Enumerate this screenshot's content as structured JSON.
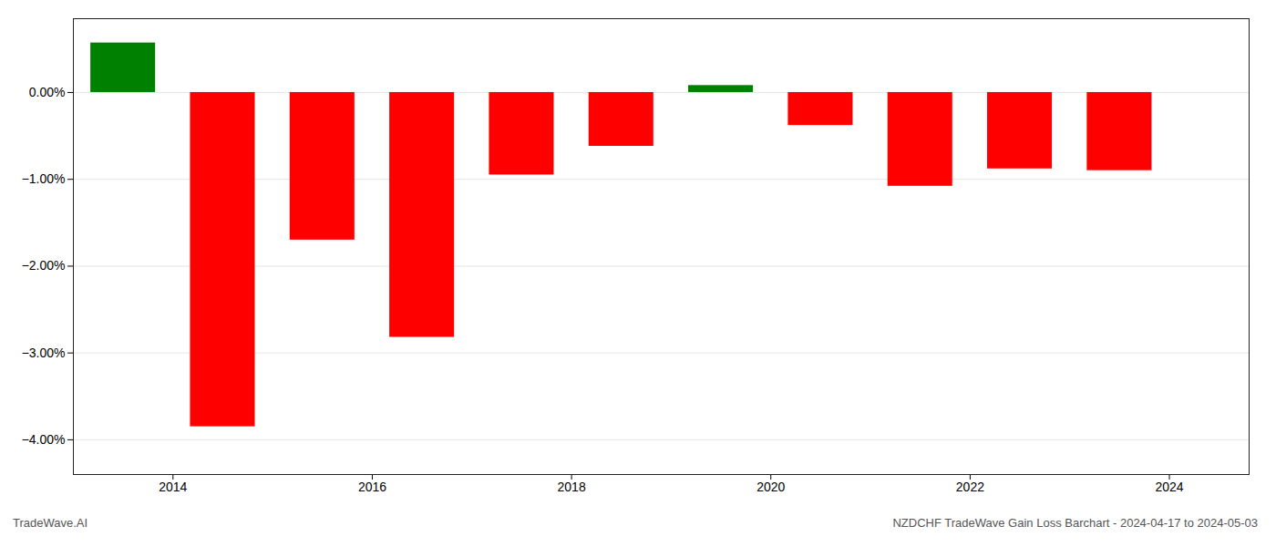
{
  "chart_data": {
    "type": "bar",
    "title": "NZDCHF TradeWave Gain Loss Barchart - 2024-04-17 to 2024-05-03",
    "annotations": [
      "TradeWave.AI"
    ],
    "x": [
      2013.5,
      2014.5,
      2015.5,
      2016.5,
      2017.5,
      2018.5,
      2019.5,
      2020.5,
      2021.5,
      2022.5,
      2023.5
    ],
    "values": [
      0.57,
      -3.85,
      -1.7,
      -2.82,
      -0.95,
      -0.62,
      0.08,
      -0.38,
      -1.08,
      -0.88,
      -0.9
    ],
    "colors": [
      "#008000",
      "#ff0000",
      "#ff0000",
      "#ff0000",
      "#ff0000",
      "#ff0000",
      "#008000",
      "#ff0000",
      "#ff0000",
      "#ff0000",
      "#ff0000"
    ],
    "xlim": [
      2013.0,
      2024.8
    ],
    "xticks": [
      2014,
      2016,
      2018,
      2020,
      2022,
      2024
    ],
    "ylim": [
      -4.4,
      0.85
    ],
    "yticks": [
      {
        "value": 0.0,
        "label": "0.00%"
      },
      {
        "value": -1.0,
        "label": "−1.00%"
      },
      {
        "value": -2.0,
        "label": "−2.00%"
      },
      {
        "value": -3.0,
        "label": "−3.00%"
      },
      {
        "value": -4.0,
        "label": "−4.00%"
      }
    ],
    "grid": true
  }
}
